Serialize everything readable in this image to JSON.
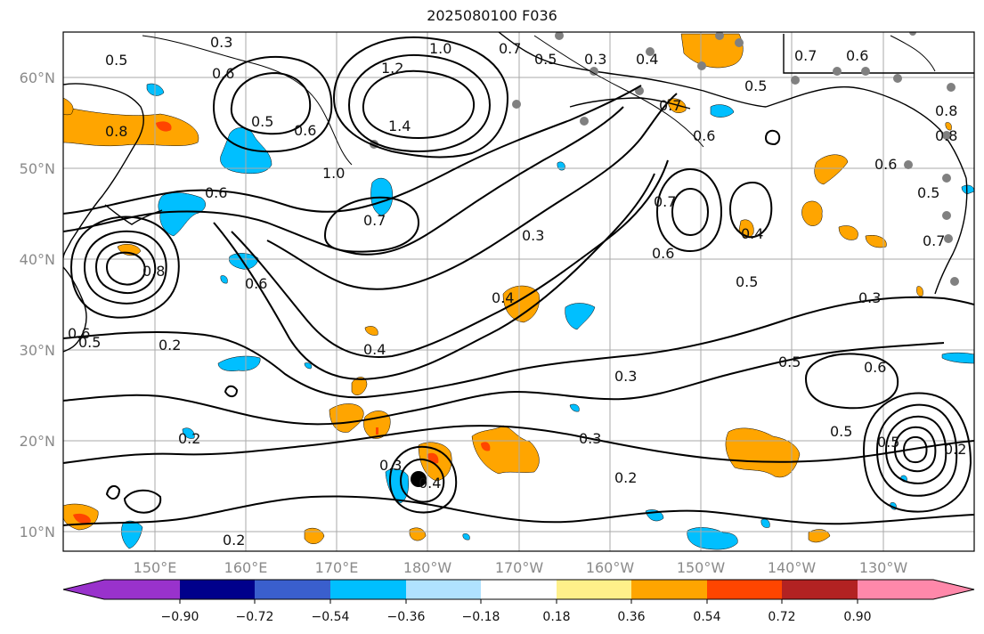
{
  "title": "2025080100 F036",
  "lat_labels": [
    "60°N",
    "50°N",
    "40°N",
    "30°N",
    "20°N",
    "10°N"
  ],
  "lon_labels": [
    "150°E",
    "160°E",
    "170°E",
    "180°W",
    "170°W",
    "160°W",
    "150°W",
    "140°W",
    "130°W"
  ],
  "colorbar": {
    "colors": [
      "#9932cc",
      "#00008b",
      "#3a5fcd",
      "#00bfff",
      "#b0e2ff",
      "#ffffff",
      "#fff08a",
      "#ffa500",
      "#ff4500",
      "#b22222",
      "#ff88aa"
    ],
    "ticks": [
      "−0.90",
      "−0.72",
      "−0.54",
      "−0.36",
      "−0.18",
      "0.18",
      "0.36",
      "0.54",
      "0.72",
      "0.90"
    ]
  },
  "contour_labels": [
    "0.3",
    "0.5",
    "0.6",
    "0.5",
    "1.0",
    "1.2",
    "1.4",
    "0.7",
    "0.5",
    "0.3",
    "0.4",
    "0.5",
    "0.7",
    "0.6",
    "0.8",
    "0.8",
    "0.6",
    "1.0",
    "0.7",
    "0.6",
    "0.3",
    "0.4",
    "0.4",
    "0.7",
    "0.6",
    "0.5",
    "0.3",
    "0.2",
    "0.3",
    "0.3",
    "0.5",
    "0.6",
    "0.5",
    "0.5",
    "0.2",
    "0.2",
    "0.2",
    "0.3",
    "0.2",
    "0.8",
    "0.6",
    "0.4",
    "0.6",
    "0.4",
    "0.5",
    "0.6",
    "0.7",
    "0.6",
    "0.5",
    "0.7",
    "0.8"
  ],
  "colors": {
    "positive": "#ffa500",
    "negative": "#00bfff",
    "strong_positive": "#ff4500",
    "station": "#808080"
  }
}
